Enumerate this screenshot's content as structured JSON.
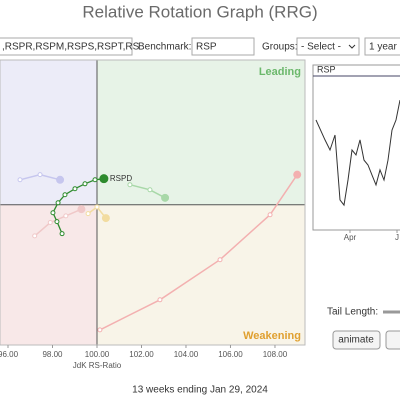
{
  "header": {
    "title": "Relative Rotation Graph (RRG)"
  },
  "toolbar": {
    "symbols": ",RSPR,RSPM,RSPS,RSPT,RS",
    "benchmark_label": "Benchmark:",
    "benchmark": "RSP",
    "groups_label": "Groups:",
    "groups": "- Select -",
    "period": "1 year"
  },
  "chart_data": [
    {
      "type": "rrg",
      "xlabel": "JdK RS-Ratio",
      "quadrant_labels": {
        "leading": "Leading",
        "weakening": "Weakening"
      },
      "center": [
        100,
        100
      ],
      "xlim": [
        95.64,
        109.35
      ],
      "ylim": [
        93.7,
        106.5
      ],
      "xticks": [
        {
          "value": 96,
          "label": "96.00"
        },
        {
          "value": 98,
          "label": "98.00"
        },
        {
          "value": 100,
          "label": "100.00"
        },
        {
          "value": 102,
          "label": "102.00"
        },
        {
          "value": 104,
          "label": "104.00"
        },
        {
          "value": 106,
          "label": "106.00"
        },
        {
          "value": 108,
          "label": "108.00"
        }
      ],
      "series": [
        {
          "name": "RSPD",
          "color": "#2e8b2e",
          "x": [
            98.43,
            98.2,
            98.02,
            98.25,
            98.56,
            99.01,
            99.46,
            99.91,
            100.31
          ],
          "values": [
            98.7,
            99.24,
            99.64,
            100.09,
            100.45,
            100.72,
            100.94,
            101.12,
            101.17
          ]
        },
        {
          "color": "#f3b0b0",
          "x": [
            100.13,
            102.83,
            105.53,
            107.78,
            109.0
          ],
          "values": [
            94.38,
            95.73,
            97.53,
            99.55,
            101.35
          ]
        },
        {
          "color": "#a8d8a8",
          "x": [
            101.48,
            102.38,
            103.06
          ],
          "values": [
            100.9,
            100.67,
            100.31
          ]
        },
        {
          "color": "#c6c6ee",
          "x": [
            96.54,
            97.44,
            98.34
          ],
          "values": [
            101.12,
            101.35,
            101.12
          ]
        },
        {
          "color": "#f0c8c8",
          "x": [
            97.2,
            97.9,
            98.6,
            99.3
          ],
          "values": [
            98.6,
            99.2,
            99.5,
            99.8
          ]
        },
        {
          "color": "#f2dca0",
          "x": [
            99.6,
            100.0,
            100.4
          ],
          "values": [
            99.6,
            99.9,
            99.4
          ]
        }
      ]
    },
    {
      "type": "line",
      "title": "RSP",
      "color": "#333333",
      "xlim": [
        0,
        84
      ],
      "ylim": [
        0,
        100
      ],
      "xticks": [
        {
          "value": 34,
          "label": "Apr"
        },
        {
          "value": 81,
          "label": "J"
        }
      ],
      "x": [
        0,
        9,
        14,
        19,
        24,
        28,
        32,
        36,
        40,
        44,
        48,
        52,
        56,
        60,
        64,
        68,
        72,
        76,
        80,
        84
      ],
      "values": [
        70,
        56.7,
        50,
        60,
        16.7,
        13.3,
        30,
        50,
        46.7,
        56.7,
        43.3,
        40,
        33.3,
        26.7,
        36.7,
        30,
        43.3,
        63.3,
        70,
        83.3
      ]
    }
  ],
  "controls": {
    "tail_length_label": "Tail Length:",
    "animate": "animate"
  },
  "footer": "13 weeks ending Jan 29, 2024"
}
